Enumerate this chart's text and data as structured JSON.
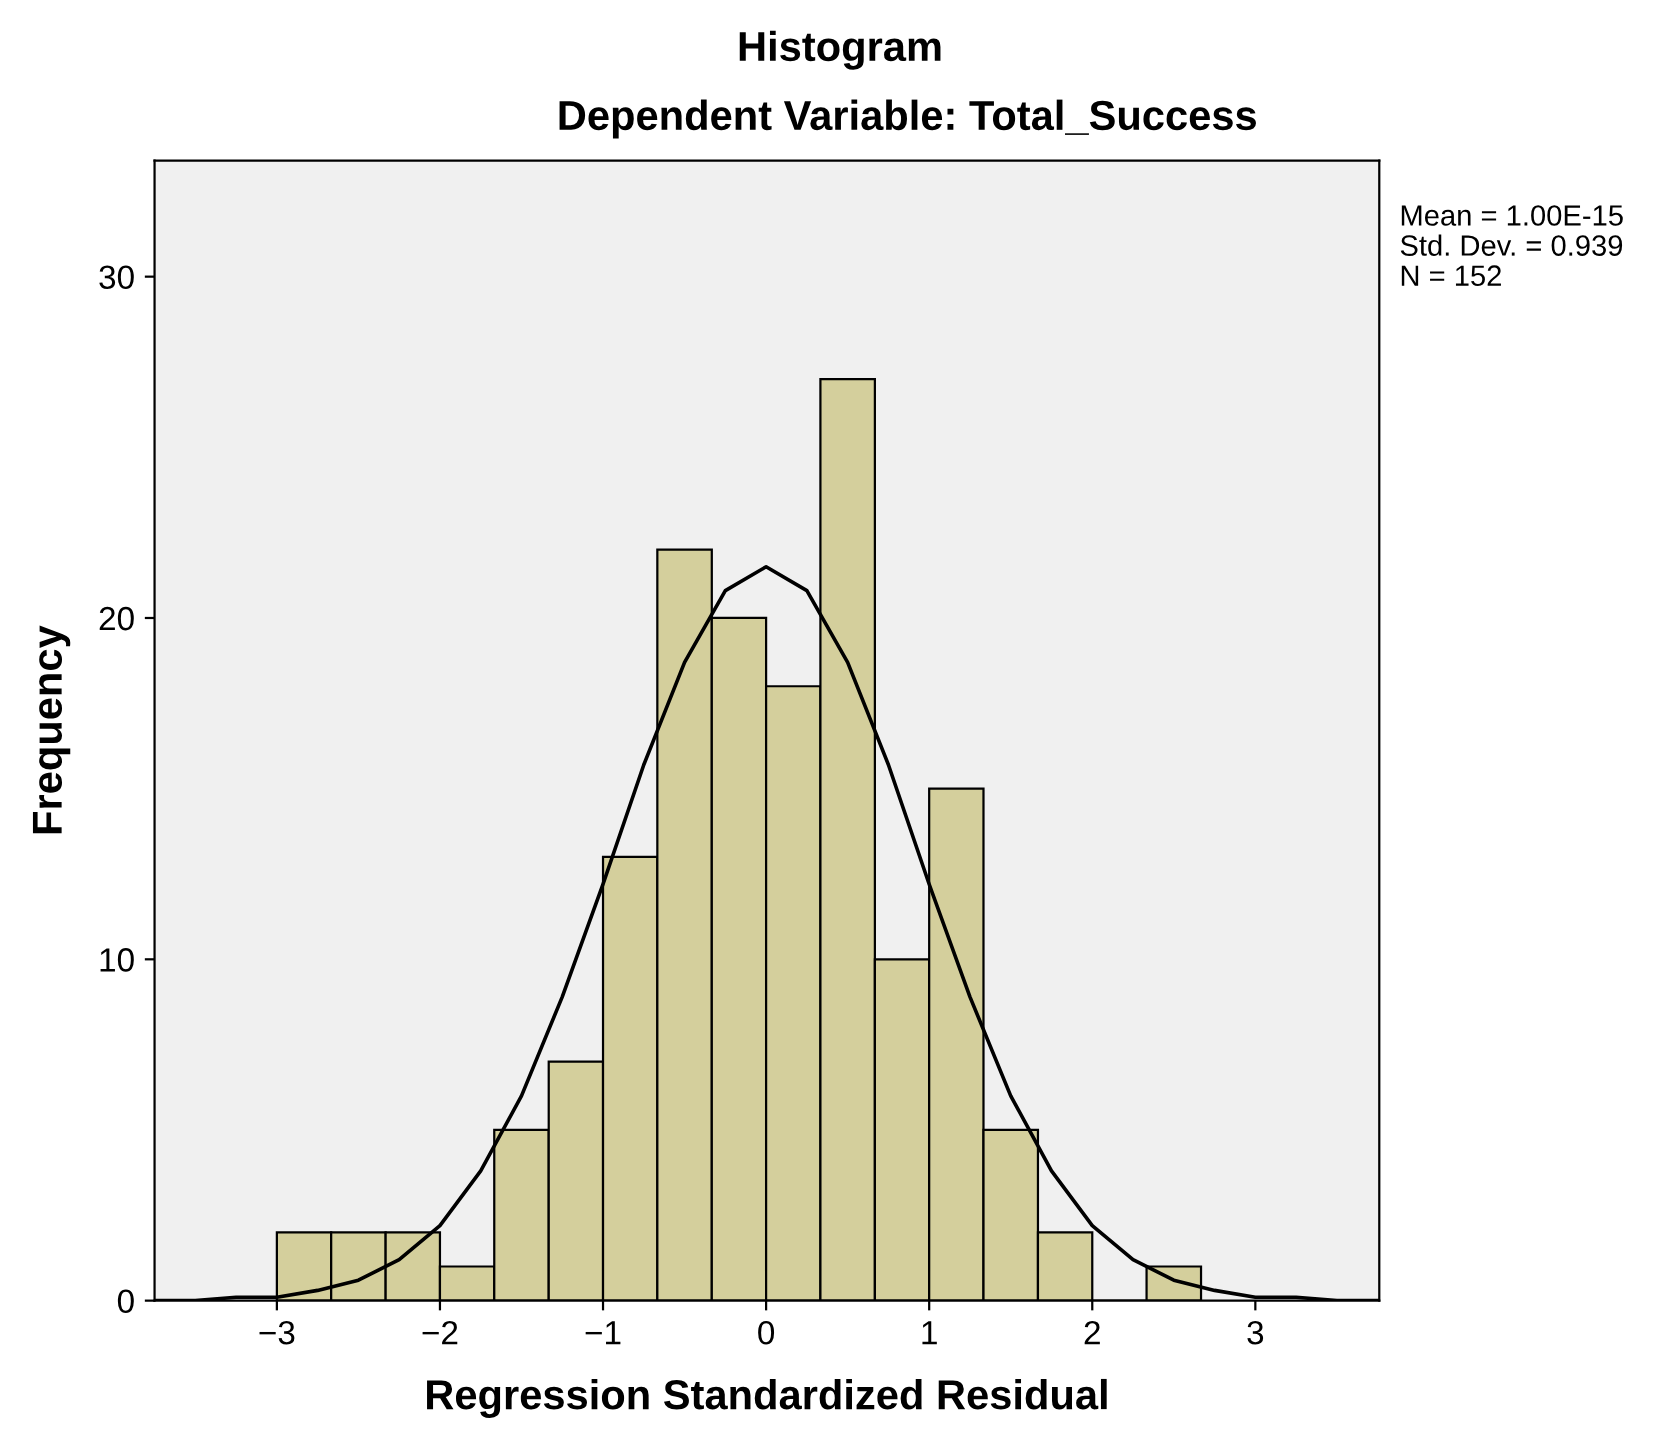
{
  "chart_data": {
    "type": "histogram",
    "title": "Histogram",
    "subtitle": "Dependent Variable: Total_Success",
    "xlabel": "Regression Standardized Residual",
    "ylabel": "Frequency",
    "series": [
      {
        "color": "#d4cf9c",
        "bins": [
          -3,
          -2.667,
          -2.333,
          -2,
          -1.667,
          -1.333,
          -1,
          -0.667,
          -0.333,
          0,
          0.333,
          0.667,
          1,
          1.333,
          1.667,
          2,
          2.333,
          2.667
        ],
        "values": [
          2,
          2,
          2,
          1,
          5,
          7,
          13,
          22,
          20,
          18,
          27,
          10,
          15,
          5,
          2,
          0,
          1
        ]
      },
      {
        "type": "line",
        "color": "#000000",
        "x": [
          -3.75,
          -3.5,
          -3.25,
          -3,
          -2.75,
          -2.5,
          -2.25,
          -2,
          -1.75,
          -1.5,
          -1.25,
          -1,
          -0.75,
          -0.5,
          -0.25,
          0,
          0.25,
          0.5,
          0.75,
          1,
          1.25,
          1.5,
          1.75,
          2,
          2.25,
          2.5,
          2.75,
          3,
          3.25,
          3.5,
          3.75
        ],
        "values": [
          0,
          0,
          0.1,
          0.1,
          0.3,
          0.6,
          1.2,
          2.2,
          3.8,
          6,
          8.9,
          12.2,
          15.7,
          18.7,
          20.8,
          21.5,
          20.8,
          18.7,
          15.7,
          12.2,
          8.9,
          6,
          3.8,
          2.2,
          1.2,
          0.6,
          0.3,
          0.1,
          0.1,
          0,
          0
        ]
      }
    ],
    "xlim": [
      -3.75,
      3.76
    ],
    "ylim": [
      0,
      33.4
    ],
    "xticks": [
      {
        "value": -3,
        "label": "−3"
      },
      {
        "value": -2,
        "label": "−2"
      },
      {
        "value": -1,
        "label": "−1"
      },
      0,
      1,
      2,
      3
    ],
    "yticks": [
      0,
      10,
      20,
      30
    ],
    "annotations": [
      "Mean = 1.00E-15",
      "Std. Dev. = 0.939",
      "N = 152"
    ]
  }
}
